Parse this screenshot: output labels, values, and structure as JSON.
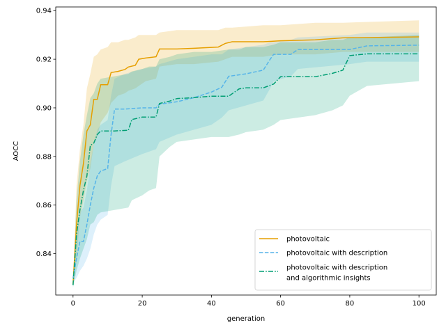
{
  "chart_data": {
    "type": "line",
    "title": "",
    "xlabel": "generation",
    "ylabel": "AOCC",
    "xlim": [
      -5,
      105
    ],
    "ylim": [
      0.823,
      0.9415
    ],
    "xticks": [
      0,
      20,
      40,
      60,
      80,
      100
    ],
    "yticks": [
      0.84,
      0.86,
      0.88,
      0.9,
      0.92,
      0.94
    ],
    "ytick_labels": [
      "0.84",
      "0.86",
      "0.88",
      "0.90",
      "0.92",
      "0.94"
    ],
    "grid": false,
    "legend_position": "lower-right",
    "series": [
      {
        "name": "photovoltaic",
        "color": "#E69F00",
        "style": "solid",
        "x": [
          0,
          1,
          2,
          3,
          4,
          5,
          6,
          7,
          8,
          10,
          11,
          13,
          15,
          16,
          18,
          19,
          21,
          24,
          25,
          30,
          35,
          42,
          44,
          46,
          55,
          60,
          70,
          78,
          100
        ],
        "y": [
          0.8275,
          0.852,
          0.868,
          0.877,
          0.8905,
          0.893,
          0.9035,
          0.9035,
          0.9095,
          0.9095,
          0.9145,
          0.915,
          0.9158,
          0.9168,
          0.9175,
          0.92,
          0.9205,
          0.921,
          0.9242,
          0.9242,
          0.9245,
          0.925,
          0.9265,
          0.9272,
          0.9272,
          0.9276,
          0.928,
          0.9288,
          0.9292
        ],
        "lower": [
          0.827,
          0.837,
          0.855,
          0.862,
          0.87,
          0.875,
          0.885,
          0.888,
          0.894,
          0.898,
          0.902,
          0.905,
          0.906,
          0.907,
          0.908,
          0.909,
          0.911,
          0.912,
          0.917,
          0.918,
          0.918,
          0.919,
          0.92,
          0.921,
          0.921,
          0.922,
          0.922,
          0.923,
          0.923
        ],
        "upper": [
          0.828,
          0.868,
          0.883,
          0.893,
          0.908,
          0.914,
          0.921,
          0.922,
          0.924,
          0.925,
          0.927,
          0.927,
          0.928,
          0.928,
          0.929,
          0.93,
          0.93,
          0.93,
          0.931,
          0.932,
          0.932,
          0.932,
          0.933,
          0.933,
          0.934,
          0.934,
          0.935,
          0.935,
          0.936
        ]
      },
      {
        "name": "photovoltaic with description",
        "color": "#56B4E9",
        "style": "dashed",
        "x": [
          0,
          1,
          2,
          3,
          4,
          5,
          6,
          7,
          8,
          10,
          11,
          12,
          15,
          20,
          24,
          25,
          30,
          35,
          40,
          43,
          45,
          50,
          55,
          57,
          58,
          63,
          65,
          80,
          85,
          100
        ],
        "y": [
          0.83,
          0.838,
          0.845,
          0.845,
          0.852,
          0.86,
          0.867,
          0.872,
          0.874,
          0.875,
          0.889,
          0.8995,
          0.8995,
          0.9,
          0.9,
          0.9015,
          0.9025,
          0.9042,
          0.9065,
          0.9085,
          0.913,
          0.914,
          0.9155,
          0.92,
          0.922,
          0.922,
          0.924,
          0.924,
          0.9255,
          0.9258
        ],
        "lower": [
          0.828,
          0.83,
          0.833,
          0.835,
          0.838,
          0.842,
          0.848,
          0.852,
          0.854,
          0.856,
          0.868,
          0.876,
          0.878,
          0.881,
          0.883,
          0.886,
          0.889,
          0.891,
          0.893,
          0.896,
          0.899,
          0.901,
          0.903,
          0.908,
          0.911,
          0.913,
          0.916,
          0.918,
          0.919,
          0.919
        ],
        "upper": [
          0.832,
          0.847,
          0.857,
          0.859,
          0.866,
          0.877,
          0.885,
          0.891,
          0.893,
          0.895,
          0.905,
          0.912,
          0.914,
          0.916,
          0.917,
          0.918,
          0.92,
          0.921,
          0.922,
          0.922,
          0.924,
          0.925,
          0.926,
          0.927,
          0.927,
          0.928,
          0.929,
          0.93,
          0.931,
          0.931
        ]
      },
      {
        "name": "photovoltaic with description\nand algorithmic insights",
        "color": "#009E73",
        "style": "dashdot",
        "x": [
          0,
          1,
          2,
          3,
          4,
          5,
          6,
          7,
          8,
          12,
          16,
          17,
          20,
          22,
          24,
          25,
          28,
          30,
          35,
          40,
          45,
          48,
          50,
          55,
          58,
          60,
          70,
          75,
          78,
          80,
          85,
          100
        ],
        "y": [
          0.827,
          0.848,
          0.858,
          0.866,
          0.872,
          0.8845,
          0.8855,
          0.889,
          0.8905,
          0.8905,
          0.8908,
          0.8952,
          0.8962,
          0.8962,
          0.8962,
          0.9018,
          0.9028,
          0.9038,
          0.9042,
          0.9048,
          0.9048,
          0.9078,
          0.9082,
          0.9082,
          0.9098,
          0.9128,
          0.9128,
          0.9142,
          0.9155,
          0.9215,
          0.9222,
          0.9222
        ],
        "lower": [
          0.826,
          0.833,
          0.838,
          0.842,
          0.846,
          0.852,
          0.853,
          0.856,
          0.857,
          0.858,
          0.859,
          0.862,
          0.864,
          0.866,
          0.867,
          0.88,
          0.884,
          0.886,
          0.887,
          0.888,
          0.888,
          0.889,
          0.89,
          0.891,
          0.893,
          0.895,
          0.897,
          0.899,
          0.901,
          0.905,
          0.909,
          0.911
        ],
        "upper": [
          0.828,
          0.862,
          0.878,
          0.889,
          0.897,
          0.904,
          0.906,
          0.91,
          0.912,
          0.913,
          0.914,
          0.915,
          0.916,
          0.917,
          0.917,
          0.92,
          0.921,
          0.922,
          0.923,
          0.923,
          0.924,
          0.924,
          0.925,
          0.925,
          0.926,
          0.927,
          0.927,
          0.928,
          0.928,
          0.929,
          0.929,
          0.93
        ]
      }
    ]
  }
}
